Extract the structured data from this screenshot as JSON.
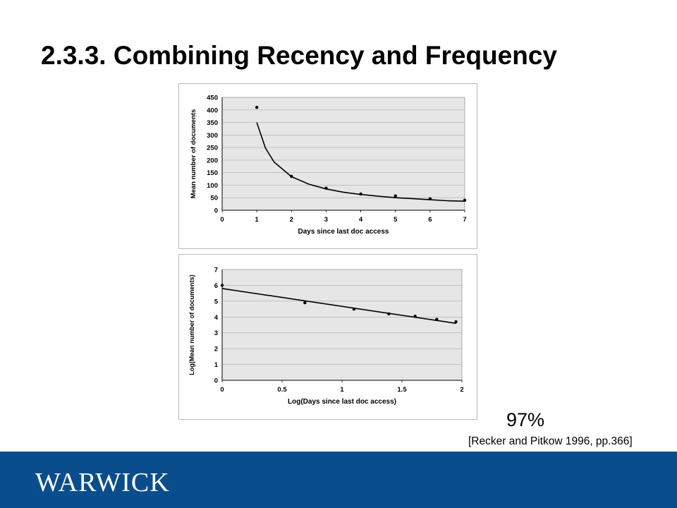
{
  "slide": {
    "title": "2.3.3. Combining Recency and Frequency",
    "percent": "97%",
    "citation": "[Recker and Pitkow 1996, pp.366]",
    "logo_text": "WARWICK",
    "footer_color": "#0a4d8c"
  },
  "chart_data": [
    {
      "type": "scatter",
      "title": "",
      "xlabel": "Days since last doc access",
      "ylabel": "Mean number of documents",
      "xlim": [
        0,
        7
      ],
      "ylim": [
        0,
        450
      ],
      "xticks": [
        0,
        1,
        2,
        3,
        4,
        5,
        6,
        7
      ],
      "yticks": [
        0,
        50,
        100,
        150,
        200,
        250,
        300,
        350,
        400,
        450
      ],
      "grid": true,
      "series": [
        {
          "type": "scatter",
          "x": [
            1,
            2,
            3,
            4,
            5,
            6,
            7
          ],
          "y": [
            410,
            135,
            88,
            65,
            57,
            46,
            40
          ]
        },
        {
          "type": "line",
          "fit": "power",
          "x": [
            1,
            1.25,
            1.5,
            2,
            2.5,
            3,
            3.5,
            4,
            4.5,
            5,
            5.5,
            6,
            6.5,
            7
          ],
          "y": [
            350,
            248,
            192,
            134,
            104,
            85,
            72,
            63,
            56,
            50,
            46,
            42,
            38,
            36
          ]
        }
      ]
    },
    {
      "type": "scatter",
      "title": "",
      "xlabel": "Log(Days since last doc access)",
      "ylabel": "Log(Mean number of documents)",
      "xlim": [
        0,
        2
      ],
      "ylim": [
        0,
        7
      ],
      "xticks": [
        "0",
        "0.5",
        "1",
        "1.5",
        "2"
      ],
      "yticks": [
        0,
        1,
        2,
        3,
        4,
        5,
        6,
        7
      ],
      "grid": true,
      "series": [
        {
          "type": "scatter",
          "x": [
            0,
            0.69,
            1.1,
            1.39,
            1.61,
            1.79,
            1.95
          ],
          "y": [
            6.0,
            4.9,
            4.5,
            4.2,
            4.05,
            3.85,
            3.7
          ]
        },
        {
          "type": "line",
          "fit": "linear",
          "x": [
            0,
            1.95
          ],
          "y": [
            5.8,
            3.6
          ]
        }
      ]
    }
  ]
}
